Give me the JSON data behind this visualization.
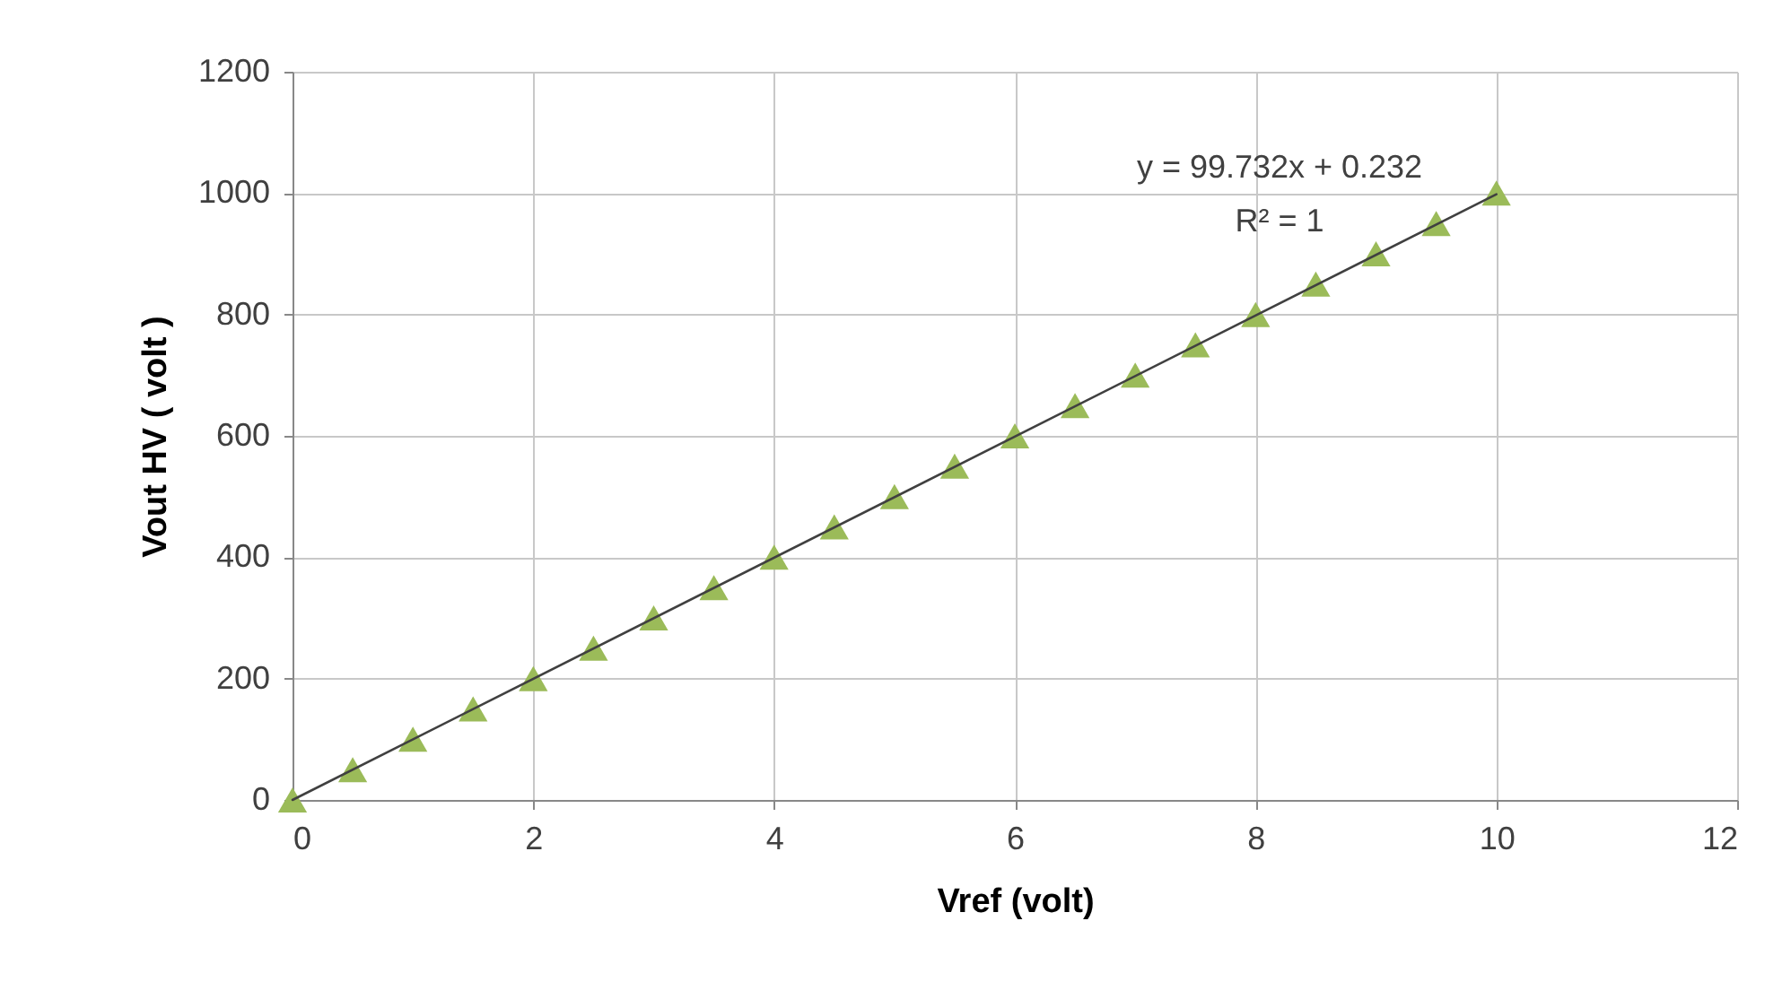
{
  "chart_data": {
    "type": "scatter",
    "xlabel": "Vref (volt)",
    "ylabel": "Vout HV ( volt )",
    "x": [
      0,
      0.5,
      1,
      1.5,
      2,
      2.5,
      3,
      3.5,
      4,
      4.5,
      5,
      5.5,
      6,
      6.5,
      7,
      7.5,
      8,
      8.5,
      9,
      9.5,
      10
    ],
    "series": [
      {
        "color": "#9bbb59",
        "values": [
          0,
          50,
          100,
          150,
          200,
          250,
          300,
          350,
          400,
          450,
          500,
          550,
          600,
          650,
          700,
          750,
          800,
          850,
          900,
          950,
          1000
        ]
      },
      {
        "type": "line",
        "marker": "none",
        "color": "#404040",
        "x": [
          0,
          10
        ],
        "values": [
          0,
          998
        ]
      }
    ],
    "annotations": [
      "y = 99.732x + 0.232",
      "R² = 1"
    ],
    "xlim": [
      0,
      12
    ],
    "xticks": [
      0,
      2,
      4,
      6,
      8,
      10,
      12
    ],
    "ylim": [
      0,
      1200
    ],
    "yticks": [
      0,
      200,
      400,
      600,
      800,
      1000,
      1200
    ],
    "grid": true,
    "marker": "triangle"
  }
}
